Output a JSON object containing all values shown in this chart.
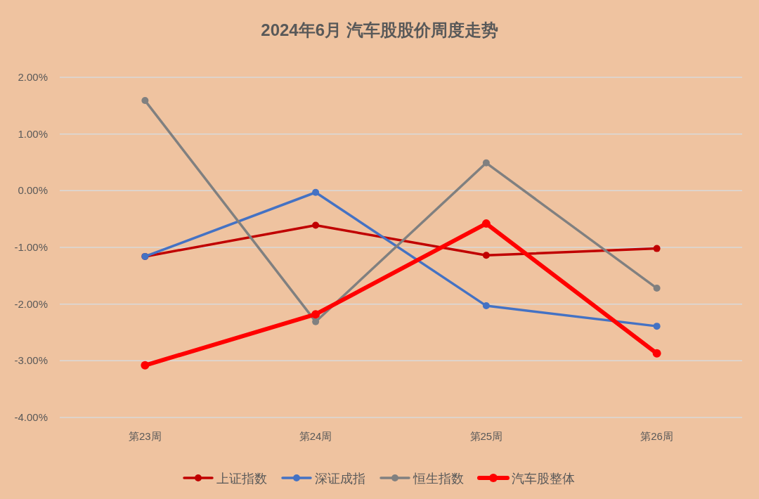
{
  "chart_data": {
    "type": "line",
    "title": "2024年6月 汽车股股价周度走势",
    "categories": [
      "第23周",
      "第24周",
      "第25周",
      "第26周"
    ],
    "series": [
      {
        "name": "上证指数",
        "color": "#c00000",
        "values": [
          -1.16,
          -0.61,
          -1.14,
          -1.02
        ]
      },
      {
        "name": "深证成指",
        "color": "#4472c4",
        "values": [
          -1.16,
          -0.03,
          -2.03,
          -2.39
        ]
      },
      {
        "name": "恒生指数",
        "color": "#808080",
        "values": [
          1.59,
          -2.31,
          0.49,
          -1.72
        ]
      },
      {
        "name": "汽车股整体",
        "color": "#ff0000",
        "values": [
          -3.08,
          -2.18,
          -0.58,
          -2.87
        ]
      }
    ],
    "ylim": [
      -4,
      2
    ],
    "yticks": [
      {
        "value": -4,
        "label": "-4.00%"
      },
      {
        "value": -3,
        "label": "-3.00%"
      },
      {
        "value": -2,
        "label": "-2.00%"
      },
      {
        "value": -1,
        "label": "-1.00%"
      },
      {
        "value": 0,
        "label": "0.00%"
      },
      {
        "value": 1,
        "label": "1.00%"
      },
      {
        "value": 2,
        "label": "2.00%"
      }
    ],
    "grid": "y",
    "legend": "bottom",
    "marker": "circle",
    "line_style": "solid"
  }
}
